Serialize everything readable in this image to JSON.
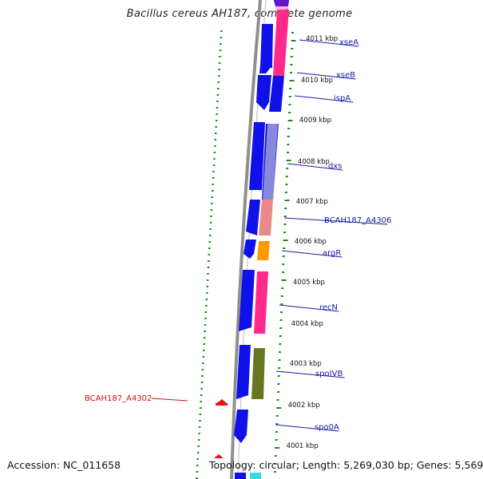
{
  "header": {
    "title": "Bacillus cereus AH187, complete genome"
  },
  "footer": {
    "accession": "Accession: NC_011658",
    "summary": "Topology: circular; Length: 5,269,030 bp; Genes: 5,569"
  },
  "colors": {
    "cds": "#1010e8",
    "backbone": "#888888",
    "tick": "#228822",
    "label": "#1a1aa6",
    "label_red": "#cc1111"
  },
  "kbp_ticks": [
    {
      "label": "4011 kbp",
      "kbp": 4011
    },
    {
      "label": "4010 kbp",
      "kbp": 4010
    },
    {
      "label": "4009 kbp",
      "kbp": 4009
    },
    {
      "label": "4008 kbp",
      "kbp": 4008
    },
    {
      "label": "4007 kbp",
      "kbp": 4007
    },
    {
      "label": "4006 kbp",
      "kbp": 4006
    },
    {
      "label": "4005 kbp",
      "kbp": 4005
    },
    {
      "label": "4004 kbp",
      "kbp": 4004
    },
    {
      "label": "4003 kbp",
      "kbp": 4003
    },
    {
      "label": "4002 kbp",
      "kbp": 4002
    },
    {
      "label": "4001 kbp",
      "kbp": 4001
    }
  ],
  "gene_labels": [
    {
      "name": "xseA",
      "color": "#1a1aa6"
    },
    {
      "name": "xseB",
      "color": "#1a1aa6"
    },
    {
      "name": "ispA",
      "color": "#1a1aa6"
    },
    {
      "name": "dxs",
      "color": "#1a1aa6"
    },
    {
      "name": "BCAH187_A4306",
      "color": "#1a1aa6"
    },
    {
      "name": "argR",
      "color": "#1a1aa6"
    },
    {
      "name": "recN",
      "color": "#1a1aa6"
    },
    {
      "name": "spoIVB",
      "color": "#1a1aa6"
    },
    {
      "name": "spo0A",
      "color": "#1a1aa6"
    },
    {
      "name": "BCAH187_A4302",
      "color": "#cc1111"
    }
  ],
  "cog_colors": [
    "#ff2a8a",
    "#8888dd",
    "#e88a8a",
    "#ff9900",
    "#ff2a8a",
    "#667722",
    "#33dddd"
  ]
}
